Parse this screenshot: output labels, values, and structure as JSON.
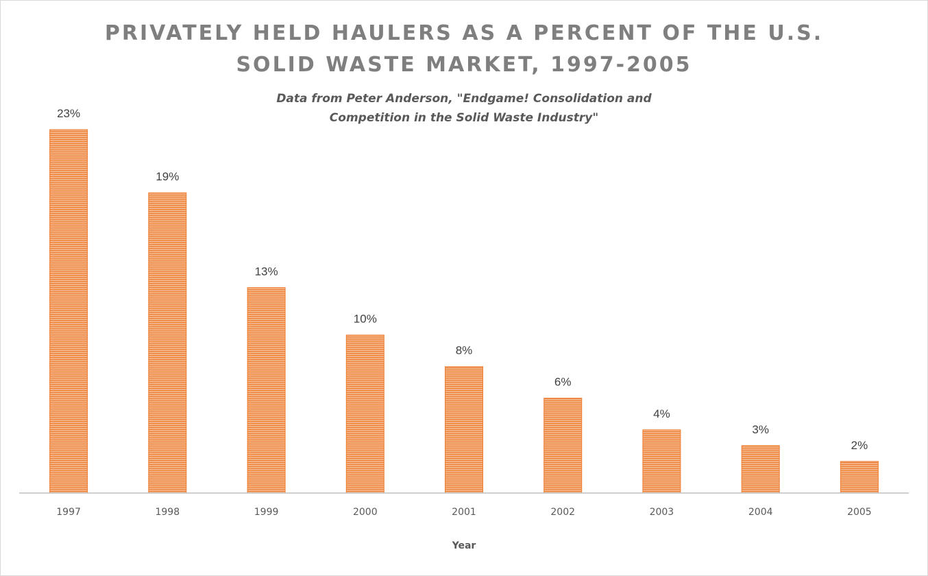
{
  "chart_data": {
    "type": "bar",
    "title_line1": "PRIVATELY HELD HAULERS AS A PERCENT OF THE U.S.",
    "title_line2": "SOLID WASTE MARKET, 1997-2005",
    "subtitle_line1": "Data from Peter Anderson, \"Endgame! Consolidation and",
    "subtitle_line2": "Competition in the Solid Waste Industry\"",
    "xlabel": "Year",
    "ylabel": "",
    "categories": [
      "1997",
      "1998",
      "1999",
      "2000",
      "2001",
      "2002",
      "2003",
      "2004",
      "2005"
    ],
    "values": [
      23,
      19,
      13,
      10,
      8,
      6,
      4,
      3,
      2
    ],
    "value_labels": [
      "23%",
      "19%",
      "13%",
      "10%",
      "8%",
      "6%",
      "4%",
      "3%",
      "2%"
    ],
    "ylim": [
      0,
      23
    ],
    "grid": false,
    "legend": "none",
    "bar_color": "#ED7D31",
    "bar_highlight": "#F4B183"
  }
}
